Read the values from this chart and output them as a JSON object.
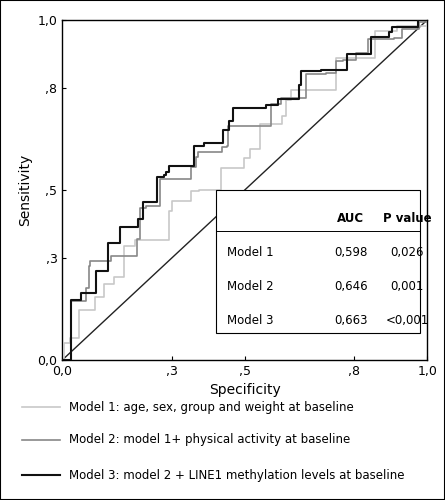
{
  "title": "",
  "xlabel": "Specificity",
  "ylabel": "Sensitivity",
  "xlim": [
    0.0,
    1.0
  ],
  "ylim": [
    0.0,
    1.0
  ],
  "xticks": [
    0.0,
    0.3,
    0.5,
    0.8,
    1.0
  ],
  "yticks": [
    0.0,
    0.3,
    0.5,
    0.8,
    1.0
  ],
  "xticklabels": [
    "0,0",
    ",3",
    ",5",
    ",8",
    "1,0"
  ],
  "yticklabels": [
    "0,0",
    ",3",
    ",5",
    ",8",
    "1,0"
  ],
  "model1_color": "#c8c8c8",
  "model2_color": "#888888",
  "model3_color": "#111111",
  "diagonal_color": "#222222",
  "table_data": {
    "headers": [
      "",
      "AUC",
      "P value"
    ],
    "rows": [
      [
        "Model 1",
        "0,598",
        "0,026"
      ],
      [
        "Model 2",
        "0,646",
        "0,001"
      ],
      [
        "Model 3",
        "0,663",
        "<0,001"
      ]
    ]
  },
  "legend_entries": [
    {
      "label": "Model 1: age, sex, group and weight at baseline",
      "color": "#c8c8c8"
    },
    {
      "label": "Model 2: model 1+ physical activity at baseline",
      "color": "#888888"
    },
    {
      "label": "Model 3: model 2 + LINE1 methylation levels at baseline",
      "color": "#111111"
    }
  ],
  "background_color": "#ffffff",
  "border_color": "#000000"
}
